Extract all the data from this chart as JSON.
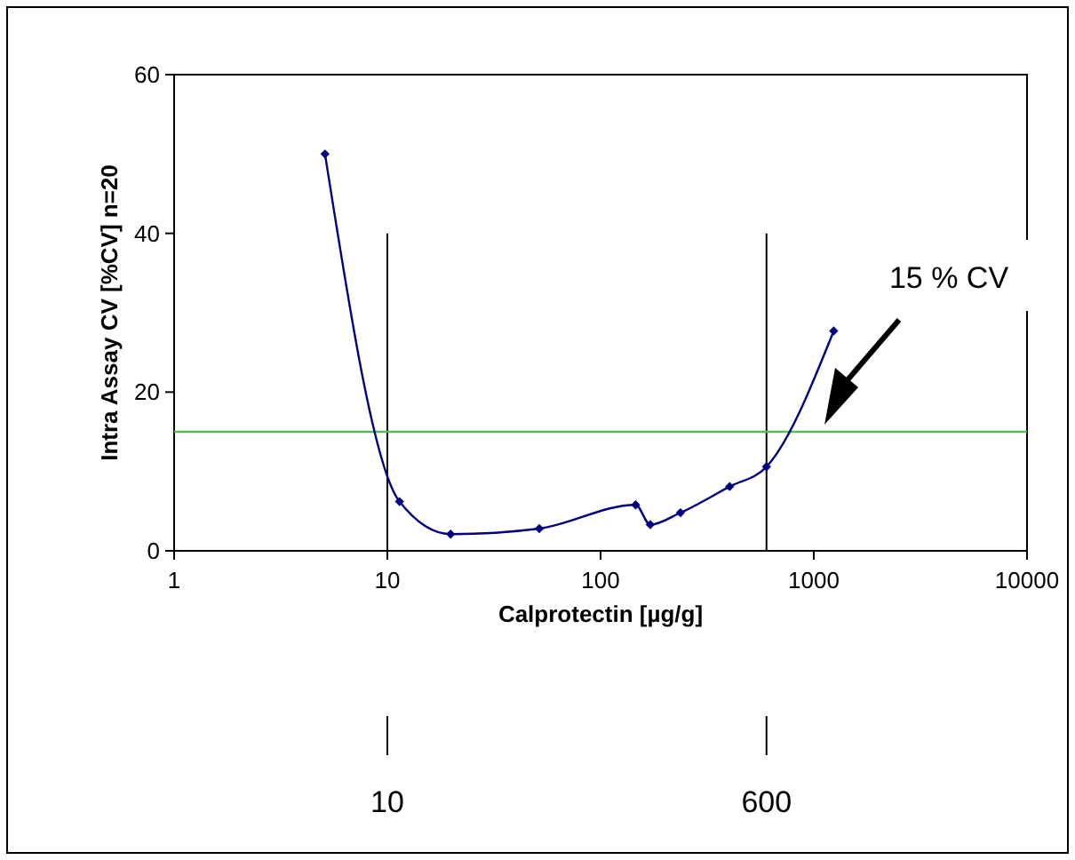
{
  "chart_data": {
    "type": "line",
    "xlabel": "Calprotectin [µg/g]",
    "ylabel": "Intra Assay CV [%CV] n=20",
    "log": "x",
    "xlim": [
      1,
      10000
    ],
    "xticks": [
      1,
      10,
      100,
      1000,
      10000
    ],
    "ylim": [
      0,
      60
    ],
    "yticks": [
      0,
      20,
      40,
      60
    ],
    "grid": false,
    "marker": "diamond",
    "line_style": "solid",
    "series": [
      {
        "color": "#000080",
        "x": [
          5.1,
          11.4,
          19.8,
          51.6,
          146,
          171,
          237,
          403,
          600,
          1240
        ],
        "values": [
          50,
          6.2,
          2.1,
          2.8,
          5.8,
          3.3,
          4.8,
          8.1,
          10.6,
          27.7
        ]
      }
    ],
    "annotations": [
      "15 % CV",
      "10",
      "600"
    ],
    "ref_lines": [
      {
        "axis": "y",
        "value": 15,
        "color": "#5cb85c"
      },
      {
        "axis": "x",
        "value": 10,
        "color": "#000000"
      },
      {
        "axis": "x",
        "value": 600,
        "color": "#000000"
      }
    ]
  }
}
